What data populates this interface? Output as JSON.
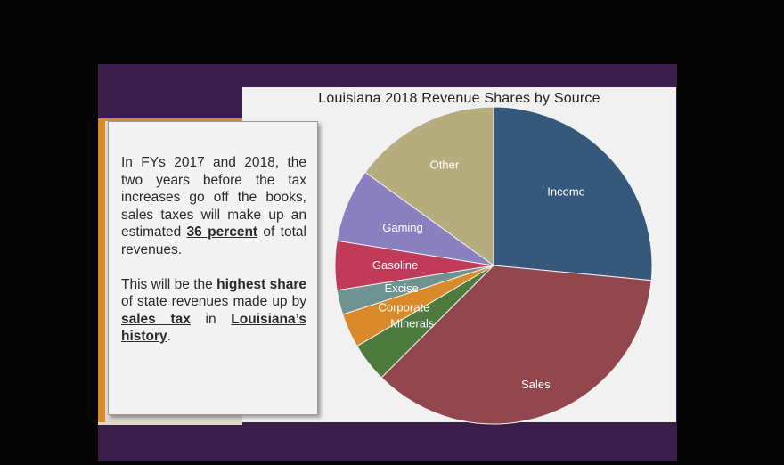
{
  "colors": {
    "background": "#050505",
    "slide": "#3b1f4a",
    "accent": "#d98a2a"
  },
  "textbox": {
    "para1": {
      "before": "In FYs 2017 and 2018, the two years before the tax increases go off the books, sales taxes will make up an estimated ",
      "emphasis": "36 percent",
      "after": " of total revenues."
    },
    "para2": {
      "t1": "This will be the ",
      "e1": "highest share",
      "t2": " of state revenues made up by ",
      "e2": "sales tax",
      "t3": " in ",
      "e3": "Louisiana’s history",
      "t4": "."
    }
  },
  "chart_data": {
    "type": "pie",
    "title": "Louisiana 2018 Revenue Shares by Source",
    "start_angle_deg": 0,
    "direction": "clockwise",
    "slices": [
      {
        "label": "Income",
        "value": 26.5,
        "color": "#36587a",
        "label_color": "#ffffff"
      },
      {
        "label": "Sales",
        "value": 36.0,
        "color": "#92474f",
        "label_color": "#ffffff"
      },
      {
        "label": "Minerals",
        "value": 4.0,
        "color": "#4f7a3e",
        "label_color": "#ffffff"
      },
      {
        "label": "Corporate",
        "value": 3.5,
        "color": "#d98a2a",
        "label_color": "#ffffff"
      },
      {
        "label": "Excise",
        "value": 2.5,
        "color": "#6e9390",
        "label_color": "#ffffff"
      },
      {
        "label": "Gasoline",
        "value": 5.0,
        "color": "#c23a5a",
        "label_color": "#ffffff"
      },
      {
        "label": "Gaming",
        "value": 7.5,
        "color": "#8a80c0",
        "label_color": "#ffffff"
      },
      {
        "label": "Other",
        "value": 15.0,
        "color": "#b5ad7e",
        "label_color": "#ffffff"
      }
    ]
  }
}
